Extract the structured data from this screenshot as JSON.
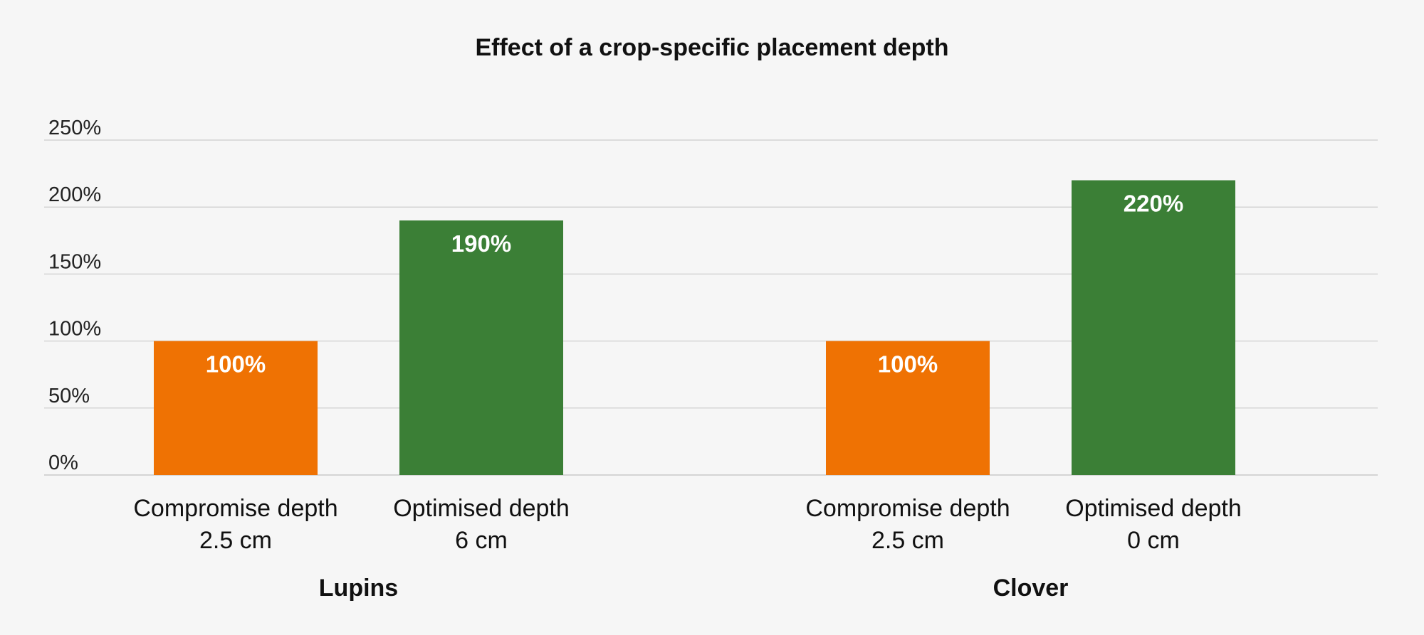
{
  "chart_data": {
    "type": "bar",
    "title": "Effect of a crop-specific placement depth",
    "xlabel": "",
    "ylabel": "",
    "ylim": [
      0,
      250
    ],
    "yticks": [
      {
        "value": 0,
        "label": "0%"
      },
      {
        "value": 50,
        "label": "50%"
      },
      {
        "value": 100,
        "label": "100%"
      },
      {
        "value": 150,
        "label": "150%"
      },
      {
        "value": 200,
        "label": "200%"
      },
      {
        "value": 250,
        "label": "250%"
      }
    ],
    "grid": true,
    "groups": [
      {
        "name": "Lupins",
        "bars": [
          {
            "category": [
              "Compromise depth",
              "2.5 cm"
            ],
            "value": 100,
            "label": "100%",
            "color": "#ef7203"
          },
          {
            "category": [
              "Optimised depth",
              "6 cm"
            ],
            "value": 190,
            "label": "190%",
            "color": "#3b7f36"
          }
        ]
      },
      {
        "name": "Clover",
        "bars": [
          {
            "category": [
              "Compromise depth",
              "2.5 cm"
            ],
            "value": 100,
            "label": "100%",
            "color": "#ef7203"
          },
          {
            "category": [
              "Optimised depth",
              "0 cm"
            ],
            "value": 220,
            "label": "220%",
            "color": "#3b7f36"
          }
        ]
      }
    ]
  }
}
